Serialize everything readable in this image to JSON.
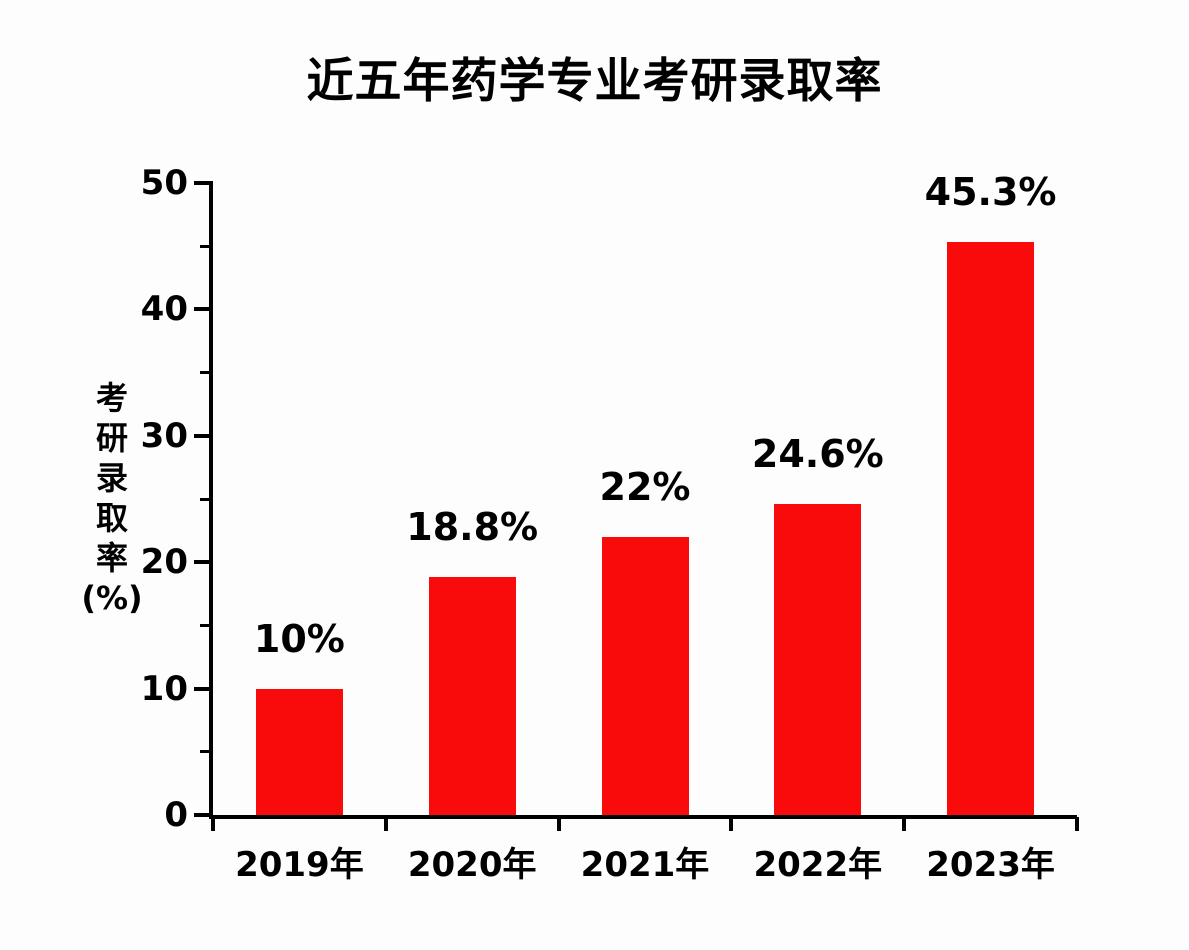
{
  "title": "近五年药学专业考研录取率",
  "colors": {
    "bar": "#f90b0b",
    "axis": "#000000",
    "text": "#000000",
    "background": "#fdfdfd"
  },
  "chart_data": {
    "type": "bar",
    "title": "近五年药学专业考研录取率",
    "categories": [
      "2019年",
      "2020年",
      "2021年",
      "2022年",
      "2023年"
    ],
    "values": [
      10,
      18.8,
      22,
      24.6,
      45.3
    ],
    "value_labels": [
      "10%",
      "18.8%",
      "22%",
      "24.6%",
      "45.3%"
    ],
    "xlabel": "",
    "ylabel": "考研录取率(%)",
    "ylabel_stacked": [
      "考",
      "研",
      "录",
      "取",
      "率",
      "(%)"
    ],
    "ylim": [
      0,
      50
    ],
    "y_major_ticks": [
      0,
      10,
      20,
      30,
      40,
      50
    ],
    "y_minor_ticks": [
      5,
      15,
      25,
      35,
      45
    ],
    "grid": false,
    "legend": false,
    "bar_color": "#f90b0b"
  }
}
